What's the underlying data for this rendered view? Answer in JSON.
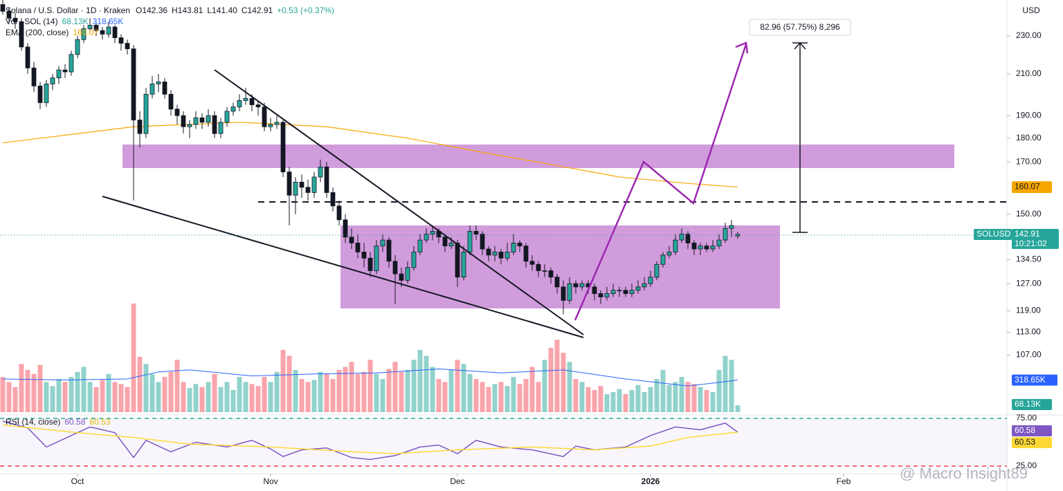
{
  "chart_data": {
    "type": "candlestick",
    "title": "Solana / U.S. Dollar · 1D · Kraken",
    "ohlc": [
      "O142.36",
      "H143.81",
      "L141.40",
      "C142.91",
      "+0.53 (+0.37%)"
    ],
    "currency": "USD",
    "symbol": "SOLUSD",
    "countdown": "10:21:02",
    "last_label": "142.91",
    "measure_label": "82.96 (57.75%) 8,296",
    "watermark": "@ Macro Insight89",
    "log_scale": true,
    "ylim": [
      92.7,
      250.7
    ],
    "yticks": [
      {
        "value": 230,
        "label": "230.00"
      },
      {
        "value": 210,
        "label": "210.00"
      },
      {
        "value": 190,
        "label": "190.00"
      },
      {
        "value": 180,
        "label": "180.00"
      },
      {
        "value": 170,
        "label": "170.00"
      },
      {
        "value": 150,
        "label": "150.00"
      },
      {
        "value": 134.5,
        "label": "134.50"
      },
      {
        "value": 127,
        "label": "127.00"
      },
      {
        "value": 119,
        "label": "119.00"
      },
      {
        "value": 113,
        "label": "113.00"
      },
      {
        "value": 107,
        "label": "107.00"
      }
    ],
    "xticks": [
      {
        "value": 12,
        "label": "Oct"
      },
      {
        "value": 43,
        "label": "Nov"
      },
      {
        "value": 73,
        "label": "Dec"
      },
      {
        "value": 104,
        "label": "2026"
      },
      {
        "value": 135,
        "label": "Feb"
      }
    ],
    "up_color": "#26a69a",
    "down_color": "#131722",
    "candles": [
      [
        248,
        252,
        242,
        244
      ],
      [
        244,
        246,
        237,
        240
      ],
      [
        240,
        243,
        234,
        238
      ],
      [
        238,
        240,
        222,
        224
      ],
      [
        224,
        226,
        210,
        213
      ],
      [
        213,
        216,
        201,
        204
      ],
      [
        204,
        206,
        193,
        196
      ],
      [
        196,
        207,
        194,
        205
      ],
      [
        205,
        210,
        202,
        208
      ],
      [
        208,
        214,
        205,
        212
      ],
      [
        212,
        215,
        208,
        211
      ],
      [
        211,
        222,
        209,
        220
      ],
      [
        220,
        230,
        218,
        228
      ],
      [
        228,
        236,
        226,
        234
      ],
      [
        234,
        240,
        231,
        236
      ],
      [
        236,
        238,
        230,
        233
      ],
      [
        233,
        235,
        228,
        231
      ],
      [
        231,
        238,
        229,
        235
      ],
      [
        235,
        236,
        226,
        229
      ],
      [
        229,
        231,
        222,
        226
      ],
      [
        226,
        228,
        220,
        223
      ],
      [
        223,
        225,
        155,
        188
      ],
      [
        188,
        192,
        176,
        182
      ],
      [
        182,
        203,
        180,
        200
      ],
      [
        200,
        209,
        198,
        205
      ],
      [
        205,
        210,
        201,
        206
      ],
      [
        206,
        208,
        198,
        200
      ],
      [
        200,
        202,
        190,
        193
      ],
      [
        193,
        195,
        186,
        190
      ],
      [
        190,
        192,
        182,
        185
      ],
      [
        185,
        188,
        180,
        186
      ],
      [
        186,
        192,
        184,
        189
      ],
      [
        189,
        191,
        184,
        187
      ],
      [
        187,
        193,
        185,
        190
      ],
      [
        190,
        192,
        180,
        182
      ],
      [
        182,
        189,
        180,
        187
      ],
      [
        187,
        194,
        185,
        192
      ],
      [
        192,
        196,
        190,
        194
      ],
      [
        194,
        200,
        192,
        197
      ],
      [
        197,
        203,
        195,
        198
      ],
      [
        198,
        200,
        192,
        195
      ],
      [
        195,
        197,
        190,
        194
      ],
      [
        194,
        196,
        183,
        185
      ],
      [
        185,
        189,
        183,
        186
      ],
      [
        186,
        190,
        184,
        187
      ],
      [
        187,
        188,
        164,
        166
      ],
      [
        166,
        168,
        146,
        157
      ],
      [
        157,
        164,
        150,
        162
      ],
      [
        162,
        165,
        156,
        160
      ],
      [
        160,
        163,
        155,
        158
      ],
      [
        158,
        166,
        156,
        164
      ],
      [
        164,
        171,
        162,
        168
      ],
      [
        168,
        170,
        156,
        158
      ],
      [
        158,
        160,
        151,
        153
      ],
      [
        153,
        155,
        146,
        148
      ],
      [
        148,
        150,
        140,
        142
      ],
      [
        142,
        145,
        138,
        140
      ],
      [
        140,
        143,
        135,
        137
      ],
      [
        137,
        140,
        132,
        135
      ],
      [
        135,
        137,
        129,
        131
      ],
      [
        131,
        141,
        130,
        139
      ],
      [
        139,
        143,
        137,
        141
      ],
      [
        141,
        142,
        132,
        134
      ],
      [
        134,
        136,
        121,
        130
      ],
      [
        130,
        132,
        126,
        128
      ],
      [
        128,
        134,
        127,
        132
      ],
      [
        132,
        139,
        131,
        137
      ],
      [
        137,
        143,
        136,
        141
      ],
      [
        141,
        145,
        140,
        143
      ],
      [
        143,
        146,
        141,
        144
      ],
      [
        144,
        145,
        140,
        142
      ],
      [
        142,
        143,
        137,
        139
      ],
      [
        139,
        142,
        138,
        140
      ],
      [
        140,
        141,
        126,
        129
      ],
      [
        129,
        139,
        128,
        137
      ],
      [
        137,
        146,
        136,
        144
      ],
      [
        144,
        146,
        141,
        143
      ],
      [
        143,
        144,
        136,
        138
      ],
      [
        138,
        139,
        134,
        136
      ],
      [
        136,
        139,
        134,
        137
      ],
      [
        137,
        138,
        133,
        135
      ],
      [
        135,
        140,
        134,
        137
      ],
      [
        137,
        143,
        136,
        140
      ],
      [
        140,
        141,
        137,
        139
      ],
      [
        139,
        140,
        132,
        134
      ],
      [
        134,
        136,
        131,
        133
      ],
      [
        133,
        134,
        129,
        131
      ],
      [
        131,
        133,
        129,
        131
      ],
      [
        131,
        132,
        127,
        129
      ],
      [
        129,
        130,
        124,
        126
      ],
      [
        126,
        128,
        118,
        122
      ],
      [
        122,
        129,
        121,
        127
      ],
      [
        127,
        128,
        124,
        126
      ],
      [
        126,
        128,
        125,
        127
      ],
      [
        127,
        128,
        124,
        126
      ],
      [
        126,
        127,
        122,
        124
      ],
      [
        124,
        125,
        121,
        123
      ],
      [
        123,
        126,
        122,
        124
      ],
      [
        124,
        127,
        123,
        125
      ],
      [
        125,
        126,
        123,
        125
      ],
      [
        125,
        126,
        123,
        124
      ],
      [
        124,
        127,
        123,
        125
      ],
      [
        125,
        128,
        124,
        126
      ],
      [
        126,
        129,
        125,
        127
      ],
      [
        127,
        131,
        126,
        129
      ],
      [
        129,
        134,
        128,
        133
      ],
      [
        133,
        137,
        132,
        136
      ],
      [
        136,
        139,
        135,
        137
      ],
      [
        137,
        143,
        136,
        141
      ],
      [
        141,
        145,
        140,
        143
      ],
      [
        143,
        144,
        138,
        140
      ],
      [
        140,
        141,
        136,
        138
      ],
      [
        138,
        140,
        136,
        139
      ],
      [
        139,
        140,
        137,
        138
      ],
      [
        138,
        141,
        137,
        139
      ],
      [
        139,
        143,
        138,
        141
      ],
      [
        141,
        147,
        140,
        145
      ],
      [
        145,
        148,
        142,
        146
      ],
      [
        142.36,
        143.81,
        141.4,
        142.91
      ]
    ],
    "volume_name": "Vol · SOL (14)",
    "volume_ylim": [
      0,
      1100
    ],
    "volume": [
      350,
      300,
      250,
      480,
      420,
      380,
      470,
      300,
      260,
      330,
      300,
      350,
      400,
      450,
      300,
      250,
      320,
      380,
      300,
      280,
      250,
      1080,
      550,
      480,
      380,
      300,
      350,
      400,
      520,
      300,
      240,
      280,
      250,
      300,
      380,
      250,
      300,
      220,
      350,
      300,
      280,
      260,
      350,
      300,
      400,
      620,
      560,
      420,
      330,
      300,
      320,
      400,
      380,
      330,
      420,
      450,
      500,
      380,
      400,
      520,
      380,
      330,
      430,
      500,
      400,
      420,
      520,
      620,
      560,
      450,
      330,
      300,
      420,
      520,
      480,
      380,
      330,
      300,
      250,
      280,
      300,
      260,
      350,
      280,
      330,
      450,
      300,
      520,
      640,
      720,
      590,
      500,
      330,
      300,
      250,
      220,
      260,
      180,
      200,
      230,
      180,
      220,
      270,
      200,
      250,
      330,
      420,
      270,
      300,
      350,
      300,
      280,
      250,
      220,
      200,
      420,
      560,
      520,
      68.13
    ],
    "volume_label": "68.13K",
    "volume_ma": {
      "color": "#2962ff",
      "x": [
        0,
        10,
        20,
        25,
        30,
        40,
        50,
        60,
        70,
        80,
        90,
        100,
        110,
        118
      ],
      "values": [
        330,
        320,
        330,
        400,
        420,
        360,
        380,
        390,
        430,
        390,
        420,
        330,
        260,
        318.65
      ],
      "value_label": "318.65K"
    },
    "ema": {
      "name": "EMA (200, close)",
      "color": "#f7a600",
      "x": [
        0,
        21,
        38,
        52,
        65,
        77,
        88,
        99,
        110,
        118
      ],
      "values": [
        178,
        185,
        187,
        185,
        180,
        174,
        169,
        164,
        161.5,
        160.07
      ],
      "value_label": "160.07"
    },
    "rsi_ylim": [
      13.4,
      78.6
    ],
    "rsi_levels": [
      {
        "value": 75,
        "label": "75.00"
      },
      {
        "value": 25,
        "label": "25.00"
      }
    ],
    "rsi": {
      "name": "RSI (14, close)",
      "color": "#7e57c2",
      "x": [
        0,
        4,
        7,
        12,
        14,
        18,
        21,
        23,
        27,
        31,
        36,
        40,
        43,
        45,
        48,
        52,
        56,
        59,
        63,
        67,
        70,
        73,
        76,
        80,
        85,
        90,
        92,
        95,
        100,
        104,
        108,
        112,
        116,
        118
      ],
      "values": [
        72,
        65,
        45,
        60,
        66,
        60,
        34,
        52,
        40,
        50,
        45,
        52,
        43,
        35,
        42,
        44,
        34,
        32,
        36,
        45,
        47,
        38,
        52,
        45,
        42,
        35,
        46,
        42,
        45,
        57,
        66,
        63,
        70,
        60.58
      ],
      "value_label": "60.58"
    },
    "rsi_ma": {
      "color": "#fdd835",
      "x": [
        0,
        12,
        21,
        30,
        43,
        56,
        63,
        73,
        85,
        95,
        104,
        110,
        118
      ],
      "values": [
        68,
        60,
        55,
        48,
        45,
        40,
        38,
        42,
        45,
        42,
        46,
        55,
        60.53
      ],
      "value_label": "60.53"
    }
  }
}
